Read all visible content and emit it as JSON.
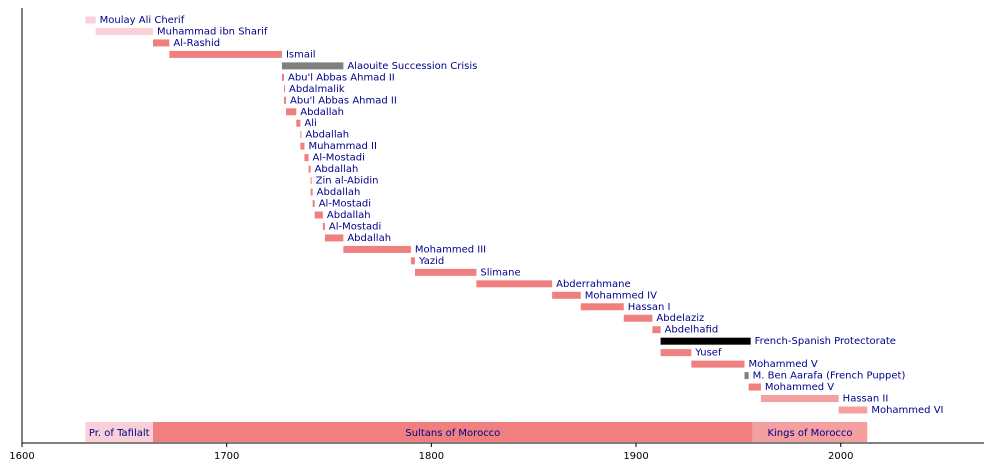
{
  "chart_data": {
    "type": "timeline",
    "xlim": [
      1600,
      2070
    ],
    "xticks": [
      1600,
      1700,
      1800,
      1900,
      2000
    ],
    "items": [
      {
        "name": "Moulay Ali Cherif",
        "start": 1631,
        "end": 1636,
        "color": "#f9d0d8"
      },
      {
        "name": "Muhammad ibn Sharif",
        "start": 1636,
        "end": 1664,
        "color": "#f9d0d8"
      },
      {
        "name": "Al-Rashid",
        "start": 1664,
        "end": 1672,
        "color": "#f08080"
      },
      {
        "name": "Ismail",
        "start": 1672,
        "end": 1727,
        "color": "#f08080"
      },
      {
        "name": "Alaouite Succession Crisis",
        "start": 1727,
        "end": 1757,
        "color": "#808080"
      },
      {
        "name": "Abu'l Abbas Ahmad II",
        "start": 1727,
        "end": 1728,
        "color": "#f08080"
      },
      {
        "name": "Abdalmalik",
        "start": 1728,
        "end": 1728.5,
        "color": "#f08080"
      },
      {
        "name": "Abu'l Abbas Ahmad II",
        "start": 1728,
        "end": 1729,
        "color": "#f08080"
      },
      {
        "name": "Abdallah",
        "start": 1729,
        "end": 1734,
        "color": "#f08080"
      },
      {
        "name": "Ali",
        "start": 1734,
        "end": 1736,
        "color": "#f08080"
      },
      {
        "name": "Abdallah",
        "start": 1736,
        "end": 1736.5,
        "color": "#f08080"
      },
      {
        "name": "Muhammad II",
        "start": 1736,
        "end": 1738,
        "color": "#f08080"
      },
      {
        "name": "Al-Mostadi",
        "start": 1738,
        "end": 1740,
        "color": "#f08080"
      },
      {
        "name": "Abdallah",
        "start": 1740,
        "end": 1741,
        "color": "#f08080"
      },
      {
        "name": "Zin al-Abidin",
        "start": 1741,
        "end": 1741.5,
        "color": "#f08080"
      },
      {
        "name": "Abdallah",
        "start": 1741,
        "end": 1742,
        "color": "#f08080"
      },
      {
        "name": "Al-Mostadi",
        "start": 1742,
        "end": 1743,
        "color": "#f08080"
      },
      {
        "name": "Abdallah",
        "start": 1743,
        "end": 1747,
        "color": "#f08080"
      },
      {
        "name": "Al-Mostadi",
        "start": 1747,
        "end": 1748,
        "color": "#f08080"
      },
      {
        "name": "Abdallah",
        "start": 1748,
        "end": 1757,
        "color": "#f08080"
      },
      {
        "name": "Mohammed III",
        "start": 1757,
        "end": 1790,
        "color": "#f08080"
      },
      {
        "name": "Yazid",
        "start": 1790,
        "end": 1792,
        "color": "#f08080"
      },
      {
        "name": "Slimane",
        "start": 1792,
        "end": 1822,
        "color": "#f08080"
      },
      {
        "name": "Abderrahmane",
        "start": 1822,
        "end": 1859,
        "color": "#f08080"
      },
      {
        "name": "Mohammed IV",
        "start": 1859,
        "end": 1873,
        "color": "#f08080"
      },
      {
        "name": "Hassan I",
        "start": 1873,
        "end": 1894,
        "color": "#f08080"
      },
      {
        "name": "Abdelaziz",
        "start": 1894,
        "end": 1908,
        "color": "#f08080"
      },
      {
        "name": "Abdelhafid",
        "start": 1908,
        "end": 1912,
        "color": "#f08080"
      },
      {
        "name": "French-Spanish Protectorate",
        "start": 1912,
        "end": 1956,
        "color": "#000000"
      },
      {
        "name": "Yusef",
        "start": 1912,
        "end": 1927,
        "color": "#f08080"
      },
      {
        "name": "Mohammed V",
        "start": 1927,
        "end": 1953,
        "color": "#f08080"
      },
      {
        "name": "M. Ben Aarafa (French Puppet)",
        "start": 1953,
        "end": 1955,
        "color": "#808080"
      },
      {
        "name": "Mohammed V",
        "start": 1955,
        "end": 1961,
        "color": "#f08080"
      },
      {
        "name": "Hassan II",
        "start": 1961,
        "end": 1999,
        "color": "#f5a0a0"
      },
      {
        "name": "Mohammed VI",
        "start": 1999,
        "end": 2013,
        "color": "#f5a0a0"
      }
    ],
    "periods": [
      {
        "name": "Pr. of Tafilalt",
        "start": 1631,
        "end": 1664,
        "color": "#f9d0d8"
      },
      {
        "name": "Sultans of Morocco",
        "start": 1664,
        "end": 1957,
        "color": "#f08080"
      },
      {
        "name": "Kings of Morocco",
        "start": 1957,
        "end": 2013,
        "color": "#f5a0a0"
      }
    ]
  }
}
